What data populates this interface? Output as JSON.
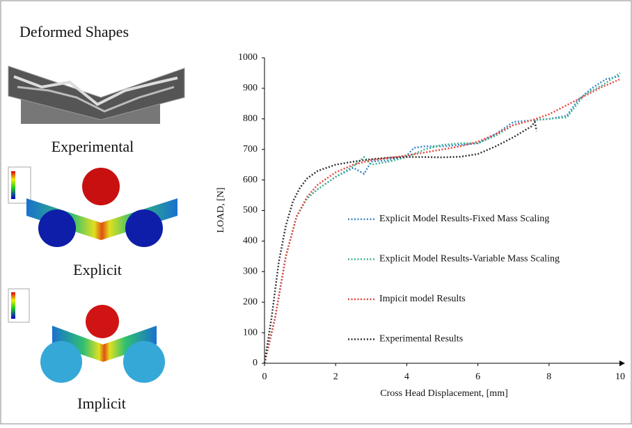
{
  "panel": {
    "title": "Deformed Shapes",
    "labels": [
      "Experimental",
      "Explicit",
      "Implicit"
    ]
  },
  "chart_data": {
    "type": "line",
    "xlabel": "Cross Head Displacement, [mm]",
    "ylabel": "LOAD, [N]",
    "xlim": [
      0,
      10
    ],
    "ylim": [
      0,
      1000
    ],
    "xticks": [
      0,
      2,
      4,
      6,
      8,
      10
    ],
    "yticks": [
      0,
      100,
      200,
      300,
      400,
      500,
      600,
      700,
      800,
      900,
      1000
    ],
    "legend": "center",
    "series": [
      {
        "name": "Explicit Model Results-Fixed Mass Scaling",
        "color": "#3a86c8",
        "x": [
          0,
          0.3,
          0.6,
          0.9,
          1.2,
          1.5,
          2,
          2.5,
          2.8,
          3,
          3.5,
          4,
          4.2,
          4.5,
          5,
          5.5,
          6,
          6.5,
          7,
          7.5,
          8,
          8.5,
          8.8,
          9.2,
          9.6,
          10
        ],
        "values": [
          0,
          150,
          350,
          480,
          540,
          570,
          610,
          640,
          620,
          660,
          665,
          680,
          705,
          710,
          710,
          715,
          720,
          750,
          790,
          795,
          800,
          810,
          860,
          900,
          930,
          940
        ]
      },
      {
        "name": "Explicit Model Results-Variable Mass Scaling",
        "color": "#3cb38f",
        "x": [
          0,
          0.3,
          0.6,
          0.9,
          1.2,
          1.5,
          2,
          2.5,
          2.8,
          3,
          3.5,
          4,
          4.5,
          5,
          5.5,
          6,
          6.5,
          7,
          7.5,
          8,
          8.5,
          9,
          9.5,
          10
        ],
        "values": [
          0,
          150,
          350,
          480,
          540,
          570,
          610,
          645,
          675,
          650,
          660,
          675,
          700,
          715,
          720,
          720,
          745,
          780,
          795,
          800,
          805,
          880,
          910,
          950
        ]
      },
      {
        "name": "Impicit model Results",
        "color": "#e8433a",
        "x": [
          0,
          0.3,
          0.6,
          0.9,
          1.2,
          1.5,
          2,
          2.5,
          3,
          3.5,
          4,
          4.5,
          5,
          5.5,
          6,
          6.5,
          7,
          7.5,
          8,
          8.5,
          9,
          9.5,
          10
        ],
        "values": [
          0,
          150,
          350,
          480,
          545,
          585,
          625,
          650,
          665,
          672,
          680,
          690,
          700,
          710,
          725,
          750,
          780,
          795,
          815,
          845,
          875,
          905,
          930
        ]
      },
      {
        "name": "Experimental Results",
        "color": "#333333",
        "x": [
          0,
          0.2,
          0.4,
          0.6,
          0.8,
          1,
          1.2,
          1.5,
          2,
          2.5,
          3,
          3.5,
          4,
          4.5,
          5,
          5.5,
          6,
          6.5,
          7,
          7.5,
          7.6,
          7.65
        ],
        "values": [
          0,
          150,
          330,
          450,
          530,
          575,
          605,
          630,
          650,
          660,
          668,
          673,
          675,
          675,
          674,
          676,
          685,
          710,
          740,
          775,
          790,
          760
        ]
      }
    ]
  }
}
